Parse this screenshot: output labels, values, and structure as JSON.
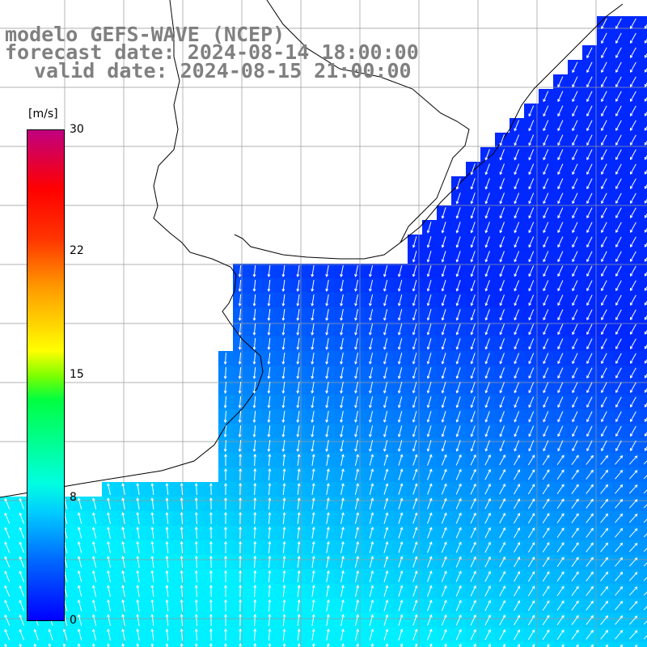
{
  "title": {
    "model": "modelo GEFS-WAVE (NCEP)",
    "forecast": "forecast date: 2024-08-14 18:00:00",
    "valid": "valid date: 2024-08-15 21:00:00"
  },
  "colorbar": {
    "unit": "[m/s]",
    "ticks": [
      "30",
      "22",
      "15",
      "8",
      "0"
    ],
    "tick_values": [
      30,
      22,
      15,
      8,
      0
    ],
    "range": [
      0,
      30
    ],
    "colors": [
      "#0000ff",
      "#0080ff",
      "#00ffff",
      "#00ff00",
      "#ffff00",
      "#ff8000",
      "#ff0000",
      "#c00080"
    ]
  },
  "map": {
    "field": "wind speed and direction",
    "land_color": "#ffffff",
    "grid": true,
    "arrow_color": "#ffffff",
    "coastline_color": "#000000"
  }
}
